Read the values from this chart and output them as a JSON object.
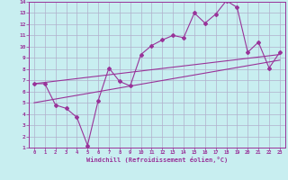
{
  "xlabel": "Windchill (Refroidissement éolien,°C)",
  "xlim": [
    -0.5,
    23.5
  ],
  "ylim": [
    1,
    14
  ],
  "xticks": [
    0,
    1,
    2,
    3,
    4,
    5,
    6,
    7,
    8,
    9,
    10,
    11,
    12,
    13,
    14,
    15,
    16,
    17,
    18,
    19,
    20,
    21,
    22,
    23
  ],
  "yticks": [
    1,
    2,
    3,
    4,
    5,
    6,
    7,
    8,
    9,
    10,
    11,
    12,
    13,
    14
  ],
  "bg_color": "#c8eef0",
  "grid_color": "#b0b0cc",
  "line_color": "#993399",
  "label_color": "#993399",
  "line1_x": [
    0,
    1,
    2,
    3,
    4,
    5,
    6,
    7,
    8,
    9,
    10,
    11,
    12,
    13,
    14,
    15,
    16,
    17,
    18,
    19,
    20,
    21,
    22,
    23
  ],
  "line1_y": [
    6.7,
    6.7,
    4.8,
    4.5,
    3.7,
    1.2,
    5.2,
    8.1,
    6.9,
    6.5,
    9.3,
    10.1,
    10.6,
    11.0,
    10.8,
    13.0,
    12.1,
    12.9,
    14.1,
    13.5,
    9.5,
    10.4,
    8.1,
    9.5
  ],
  "line2_x": [
    0,
    23
  ],
  "line2_y": [
    5.0,
    8.8
  ],
  "line3_x": [
    0,
    23
  ],
  "line3_y": [
    6.7,
    9.3
  ]
}
